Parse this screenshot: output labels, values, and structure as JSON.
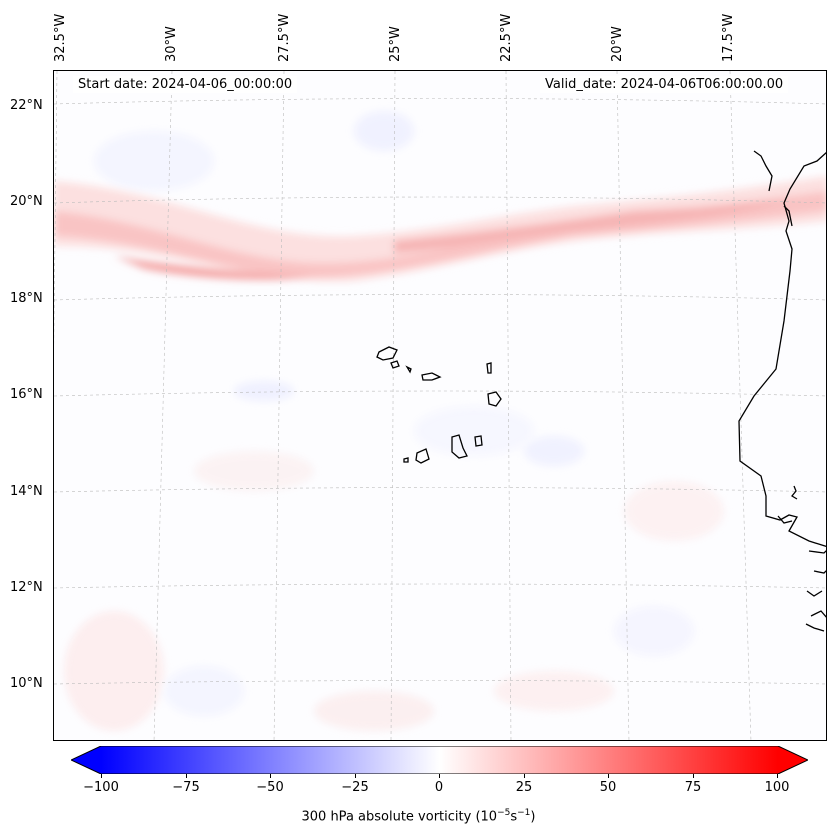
{
  "map": {
    "type": "filled-contour map",
    "start_date_text": "Start date: 2024-04-06_00:00:00",
    "valid_date_text": "Valid_date: 2024-04-06T06:00:00.00",
    "lon_labels": [
      "32.5°W",
      "30°W",
      "27.5°W",
      "25°W",
      "22.5°W",
      "20°W",
      "17.5°W"
    ],
    "lat_labels": [
      "22°N",
      "20°N",
      "18°N",
      "16°N",
      "14°N",
      "12°N",
      "10°N"
    ],
    "gridlines": true,
    "coastline_color": "#000000",
    "features": [
      "Cabo Verde islands",
      "West African coastline"
    ]
  },
  "colorbar": {
    "label_prefix": "300 hPa absolute vorticity (10",
    "label_exp1": "−5",
    "label_mid": "s",
    "label_exp2": "−1",
    "label_suffix": ")",
    "ticks": [
      "−100",
      "−75",
      "−50",
      "−25",
      "0",
      "25",
      "50",
      "75",
      "100"
    ],
    "vmin": -100,
    "vmax": 100,
    "colormap": "bwr",
    "low_color": "#0000ff",
    "mid_color": "#ffffff",
    "high_color": "#ff0000",
    "extend": "both"
  }
}
